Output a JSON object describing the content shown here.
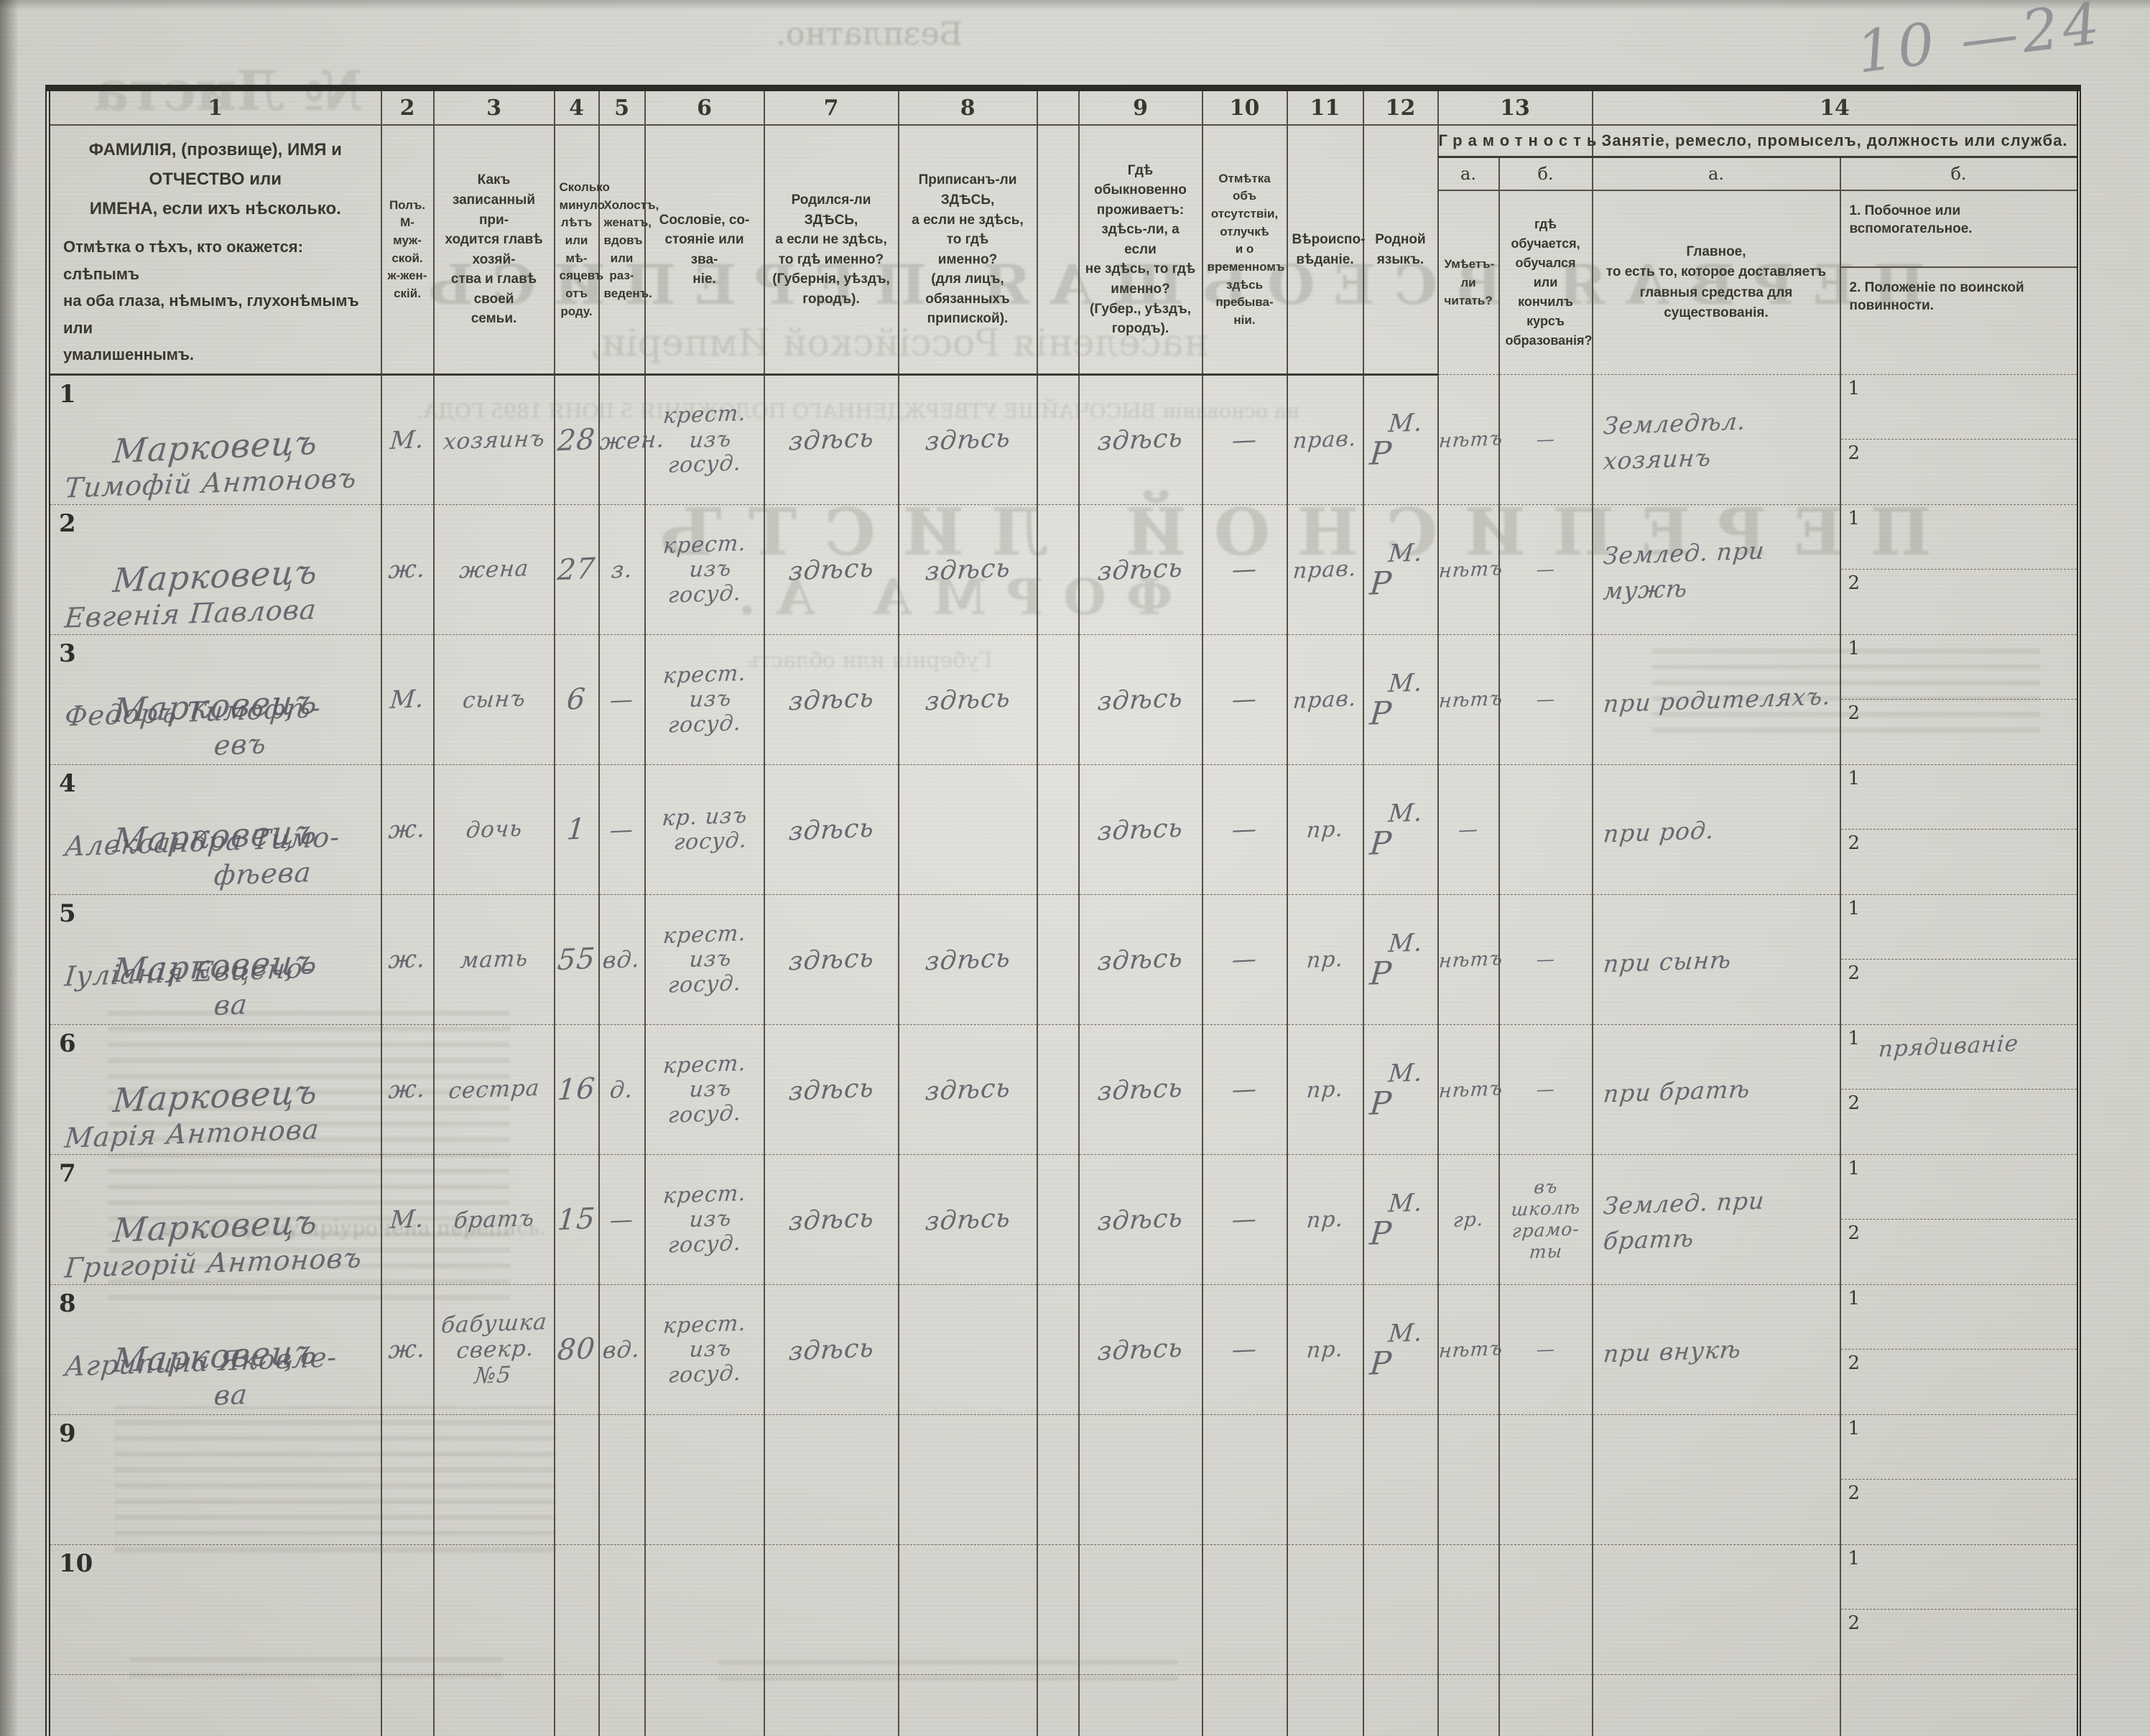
{
  "page": {
    "pencil_note": "10 —24"
  },
  "form": {
    "column_numbers": [
      "1",
      "2",
      "3",
      "4",
      "5",
      "6",
      "7",
      "8",
      "9",
      "10",
      "11",
      "12",
      "13",
      "14"
    ],
    "header": {
      "col1_p1": "ФАМИЛІЯ, (прозвище), ИМЯ и ОТЧЕСТВО или\nИМЕНА, если ихъ нѣсколько.",
      "col1_p2": "Отмѣтка о тѣхъ, кто окажется: слѣпымъ\nна оба глаза, нѣмымъ, глухонѣмымъ или\nумалишеннымъ.",
      "col2": "Полъ.\nМ-муж-\nской.\nж-жен-\nскій.",
      "col3": "Какъ записанный при-\nходится главѣ хозяй-\nства и главѣ своей\nсемьи.",
      "col4": "Сколько\nминуло\nлѣтъ\nили мѣ-\nсяцевъ\nотъ роду.",
      "col5": "Холостъ,\nженатъ,\nвдовъ\nили раз-\nведенъ.",
      "col6": "Сословіе, со-\nстояніе или зва-\nніе.",
      "col7": "Родился-ли ЗДѢСЬ,\nа если не здѣсь,\nто гдѣ именно?\n(Губернія, уѣздъ, городъ).",
      "col8": "Приписанъ-ли ЗДѢСЬ,\nа если не здѣсь, то гдѣ\nименно?\n(для лицъ, обязанныхъ\nприпиской).",
      "col9": "Гдѣ обыкновенно\nпроживаетъ:\nздѣсь-ли, а если\nне здѣсь, то гдѣ\nименно?\n(Губер., уѣздъ, городъ).",
      "col10": "Отмѣтка объ\nотсутствіи, отлучкѣ\nи о временномъ\nздѣсь пребыва-\nніи.",
      "col11": "Вѣроиспо-\nвѣданіе.",
      "col12": "Родной\nязыкъ.",
      "col13_title": "Грамотность.",
      "col13_a_letter": "а.",
      "col13_b_letter": "б.",
      "col13_a_text": "Умѣетъ-\nли\nчитать?",
      "col13_b_text": "гдѣ обучается,\nобучался или\nкончилъ курсъ\nобразованія?",
      "col14_title": "Занятіе, ремесло, промыселъ, должность или служба.",
      "col14_a_letter": "а.",
      "col14_b_letter": "б.",
      "col14_a_text": "Главное,\nто есть то, которое доставляетъ\nглавныя средства для существованія.",
      "col14_b_item1": "1.  Побочное  или  вспомогательное.",
      "col14_b_item2": "2.  Положеніе по воинской повинности."
    },
    "row_sub_labels": [
      "1",
      "2"
    ]
  },
  "rows": [
    {
      "num": "1",
      "surname": "Марковецъ",
      "name": [
        "Тимофій Антоновъ"
      ],
      "sex": "М.",
      "relation": [
        "хозяинъ"
      ],
      "age": "28",
      "marital": "жен.",
      "estate": [
        "крест.",
        "изъ",
        "госуд."
      ],
      "born": "здѣсь",
      "registered": "здѣсь",
      "resides": "здѣсь",
      "absence": "—",
      "religion": "прав.",
      "language": [
        "М.",
        "Р"
      ],
      "literacy": "нѣтъ",
      "education": [
        "—"
      ],
      "occ_main": [
        "Земледѣл.",
        "хозяинъ"
      ],
      "occ_side": ""
    },
    {
      "num": "2",
      "surname": "Марковецъ",
      "name": [
        "Евгенія Павлова"
      ],
      "sex": "ж.",
      "relation": [
        "жена"
      ],
      "age": "27",
      "marital": "з.",
      "estate": [
        "крест.",
        "изъ",
        "госуд."
      ],
      "born": "здѣсь",
      "registered": "здѣсь",
      "resides": "здѣсь",
      "absence": "—",
      "religion": "прав.",
      "language": [
        "М.",
        "Р"
      ],
      "literacy": "нѣтъ",
      "education": [
        "—"
      ],
      "occ_main": [
        "Землед. при",
        "мужѣ"
      ],
      "occ_side": ""
    },
    {
      "num": "3",
      "surname": "Марковецъ",
      "name": [
        "Федоръ Тимофѣ-",
        "евъ"
      ],
      "sex": "М.",
      "relation": [
        "сынъ"
      ],
      "age": "6",
      "marital": "—",
      "estate": [
        "крест.",
        "изъ",
        "госуд."
      ],
      "born": "здѣсь",
      "registered": "здѣсь",
      "resides": "здѣсь",
      "absence": "—",
      "religion": "прав.",
      "language": [
        "М.",
        "Р"
      ],
      "literacy": "нѣтъ",
      "education": [
        "—"
      ],
      "occ_main": [
        "при родителяхъ."
      ],
      "occ_side": ""
    },
    {
      "num": "4",
      "surname": "Марковецъ",
      "name": [
        "Александра Тимо-",
        "фѣева"
      ],
      "sex": "ж.",
      "relation": [
        "дочь"
      ],
      "age": "1",
      "marital": "—",
      "estate": [
        "кр. изъ",
        "госуд."
      ],
      "born": "здѣсь",
      "registered": "",
      "resides": "здѣсь",
      "absence": "—",
      "religion": "пр.",
      "language": [
        "М.",
        "Р"
      ],
      "literacy": "—",
      "education": [
        ""
      ],
      "occ_main": [
        "при род."
      ],
      "occ_side": ""
    },
    {
      "num": "5",
      "surname": "Марковецъ",
      "name": [
        "Іуліанія Евцено-",
        "ва"
      ],
      "sex": "ж.",
      "relation": [
        "мать"
      ],
      "age": "55",
      "marital": "вд.",
      "estate": [
        "крест.",
        "изъ",
        "госуд."
      ],
      "born": "здѣсь",
      "registered": "здѣсь",
      "resides": "здѣсь",
      "absence": "—",
      "religion": "пр.",
      "language": [
        "М.",
        "Р"
      ],
      "literacy": "нѣтъ",
      "education": [
        "—"
      ],
      "occ_main": [
        "при сынѣ"
      ],
      "occ_side": ""
    },
    {
      "num": "6",
      "surname": "Марковецъ",
      "name": [
        "Марія Антонова"
      ],
      "sex": "ж.",
      "relation": [
        "сестра"
      ],
      "age": "16",
      "marital": "д.",
      "estate": [
        "крест.",
        "изъ",
        "госуд."
      ],
      "born": "здѣсь",
      "registered": "здѣсь",
      "resides": "здѣсь",
      "absence": "—",
      "religion": "пр.",
      "language": [
        "М.",
        "Р"
      ],
      "literacy": "нѣтъ",
      "education": [
        "—"
      ],
      "occ_main": [
        "при братѣ"
      ],
      "occ_side": "прядиваніе"
    },
    {
      "num": "7",
      "surname": "Марковецъ",
      "name": [
        "Григорій Антоновъ"
      ],
      "sex": "М.",
      "relation": [
        "братъ"
      ],
      "age": "15",
      "marital": "—",
      "estate": [
        "крест.",
        "изъ",
        "госуд."
      ],
      "born": "здѣсь",
      "registered": "здѣсь",
      "resides": "здѣсь",
      "absence": "—",
      "religion": "пр.",
      "language": [
        "М.",
        "Р"
      ],
      "literacy": "гр.",
      "education": [
        "въ",
        "школѣ",
        "грамо-",
        "ты"
      ],
      "occ_main": [
        "Землед. при",
        "братѣ"
      ],
      "occ_side": ""
    },
    {
      "num": "8",
      "surname": "Марковецъ",
      "name": [
        "Агрипина Яковле-",
        "ва"
      ],
      "sex": "ж.",
      "relation": [
        "бабушка",
        "свекр. №5"
      ],
      "age": "80",
      "marital": "вд.",
      "estate": [
        "крест.",
        "изъ",
        "госуд."
      ],
      "born": "здѣсь",
      "registered": "",
      "resides": "здѣсь",
      "absence": "—",
      "religion": "пр.",
      "language": [
        "М.",
        "Р"
      ],
      "literacy": "нѣтъ",
      "education": [
        "—"
      ],
      "occ_main": [
        "при внукѣ"
      ],
      "occ_side": ""
    },
    {
      "num": "9",
      "surname": "",
      "name": [],
      "sex": "",
      "relation": [],
      "age": "",
      "marital": "",
      "estate": [],
      "born": "",
      "registered": "",
      "resides": "",
      "absence": "",
      "religion": "",
      "language": [],
      "literacy": "",
      "education": [],
      "occ_main": [],
      "occ_side": ""
    },
    {
      "num": "10",
      "surname": "",
      "name": [],
      "sex": "",
      "relation": [],
      "age": "",
      "marital": "",
      "estate": [],
      "born": "",
      "registered": "",
      "resides": "",
      "absence": "",
      "religion": "",
      "language": [],
      "literacy": "",
      "education": [],
      "occ_main": [],
      "occ_side": ""
    }
  ],
  "ghosts": [
    {
      "text": "Безплатно."
    },
    {
      "text": "№ Листа"
    },
    {
      "text": "ПЕРВАЯ ВСЕОБЩАЯ ПЕРЕПИСЬ"
    },
    {
      "text": "населенія Россійской Имперіи,"
    },
    {
      "text": "на основаніи ВЫСОЧАЙШЕ УТВЕРЖДЕННАГО ПОЛОЖЕНІЯ 5 ІЮНЯ 1895 ГОДА."
    },
    {
      "text": "ПЕРЕПИСНОЙ ЛИСТЪ"
    },
    {
      "text": "ФОРМА А."
    },
    {
      "text": "Губернія или область"
    },
    {
      "text": "къ которому пріурочена перепись."
    }
  ],
  "colors": {
    "paper": "#d9d8d1",
    "ink": "#34332e",
    "pencil": "#85858c"
  }
}
